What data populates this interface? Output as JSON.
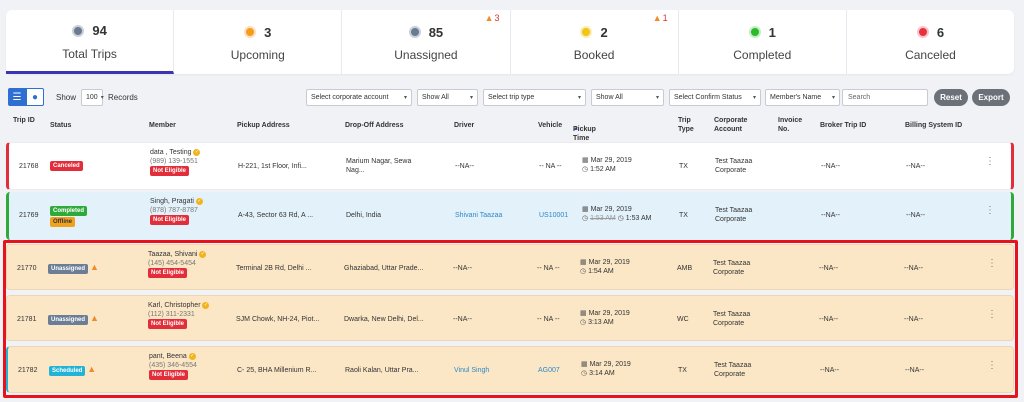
{
  "stats": [
    {
      "count": "94",
      "label": "Total Trips",
      "dot": "#6b7a90",
      "flame": ""
    },
    {
      "count": "3",
      "label": "Upcoming",
      "dot": "#f39c1e",
      "flame": ""
    },
    {
      "count": "85",
      "label": "Unassigned",
      "dot": "#6b7a90",
      "flame": "3"
    },
    {
      "count": "2",
      "label": "Booked",
      "dot": "#f0c419",
      "flame": "1"
    },
    {
      "count": "1",
      "label": "Completed",
      "dot": "#2dbb2d",
      "flame": ""
    },
    {
      "count": "6",
      "label": "Canceled",
      "dot": "#e8333f",
      "flame": ""
    }
  ],
  "toolbar": {
    "show_label": "Show",
    "show_value": "100",
    "records_label": "Records",
    "corporate_select": "Select corporate account",
    "show_all_1": "Show All",
    "trip_type_select": "Select trip type",
    "show_all_2": "Show All",
    "confirm_status_select": "Select Confirm Status",
    "members_name_select": "Member's Name",
    "search_placeholder": "Search",
    "reset_label": "Reset",
    "export_label": "Export"
  },
  "columns": {
    "trip_id": "Trip ID",
    "status": "Status",
    "member": "Member",
    "pickup": "Pickup Address",
    "dropoff": "Drop-Off Address",
    "driver": "Driver",
    "vehicle": "Vehicle",
    "pickup_time": "Pickup Time",
    "trip_type": "Trip Type",
    "corporate": "Corporate Account",
    "invoice": "Invoice No.",
    "broker": "Broker Trip ID",
    "billing": "Billing System ID"
  },
  "rows": [
    {
      "id": "21768",
      "status": "Canceled",
      "status2": "",
      "name": "data , Testing",
      "phone": "(989) 139-1551",
      "eligibility": "Not Eligible",
      "pickup": "H-221, 1st Floor, Infi...",
      "dropoff1": "Marium Nagar, Sewa",
      "dropoff2": "Nag...",
      "driver": "--NA--",
      "vehicle": "-- NA --",
      "date": "Mar 29, 2019",
      "time": "1:52 AM",
      "time_old": "",
      "type": "TX",
      "corp1": "Test Taazaa",
      "corp2": "Corporate",
      "broker": "--NA--",
      "billing": "--NA--"
    },
    {
      "id": "21769",
      "status": "Completed",
      "status2": "Offline",
      "name": "Singh, Pragati",
      "phone": "(878) 787-8787",
      "eligibility": "Not Eligible",
      "pickup": "A-43, Sector 63 Rd, A ...",
      "dropoff1": "Delhi, India",
      "dropoff2": "",
      "driver": "Shivani Taazaa",
      "vehicle": "US10001",
      "date": "Mar 29, 2019",
      "time": "1:53 AM",
      "time_old": "1:53 AM",
      "type": "TX",
      "corp1": "Test Taazaa",
      "corp2": "Corporate",
      "broker": "--NA--",
      "billing": "--NA--"
    },
    {
      "id": "21770",
      "status": "Unassigned",
      "status2": "",
      "name": "Taazaa, Shivani",
      "phone": "(145) 454-5454",
      "eligibility": "Not Eligible",
      "pickup": "Terminal 2B Rd, Delhi ...",
      "dropoff1": "Ghaziabad, Uttar Prade...",
      "dropoff2": "",
      "driver": "--NA--",
      "vehicle": "-- NA --",
      "date": "Mar 29, 2019",
      "time": "1:54 AM",
      "time_old": "",
      "type": "AMB",
      "corp1": "Test Taazaa",
      "corp2": "Corporate",
      "broker": "--NA--",
      "billing": "--NA--"
    },
    {
      "id": "21781",
      "status": "Unassigned",
      "status2": "",
      "name": "Karl, Christopher",
      "phone": "(112) 311-2331",
      "eligibility": "Not Eligible",
      "pickup": "SJM Chowk, NH-24, Piot...",
      "dropoff1": "Dwarka, New Delhi, Del...",
      "dropoff2": "",
      "driver": "--NA--",
      "vehicle": "-- NA --",
      "date": "Mar 29, 2019",
      "time": "3:13 AM",
      "time_old": "",
      "type": "WC",
      "corp1": "Test Taazaa",
      "corp2": "Corporate",
      "broker": "--NA--",
      "billing": "--NA--"
    },
    {
      "id": "21782",
      "status": "Scheduled",
      "status2": "",
      "name": "pant, Beena",
      "phone": "(435) 346-4554",
      "eligibility": "Not Eligible",
      "pickup": "C- 25, BHA Millenium R...",
      "dropoff1": "Raoli Kalan, Uttar Pra...",
      "dropoff2": "",
      "driver": "Vinul Singh",
      "vehicle": "AG007",
      "date": "Mar 29, 2019",
      "time": "3:14 AM",
      "time_old": "",
      "type": "TX",
      "corp1": "Test Taazaa",
      "corp2": "Corporate",
      "broker": "--NA--",
      "billing": "--NA--"
    }
  ]
}
